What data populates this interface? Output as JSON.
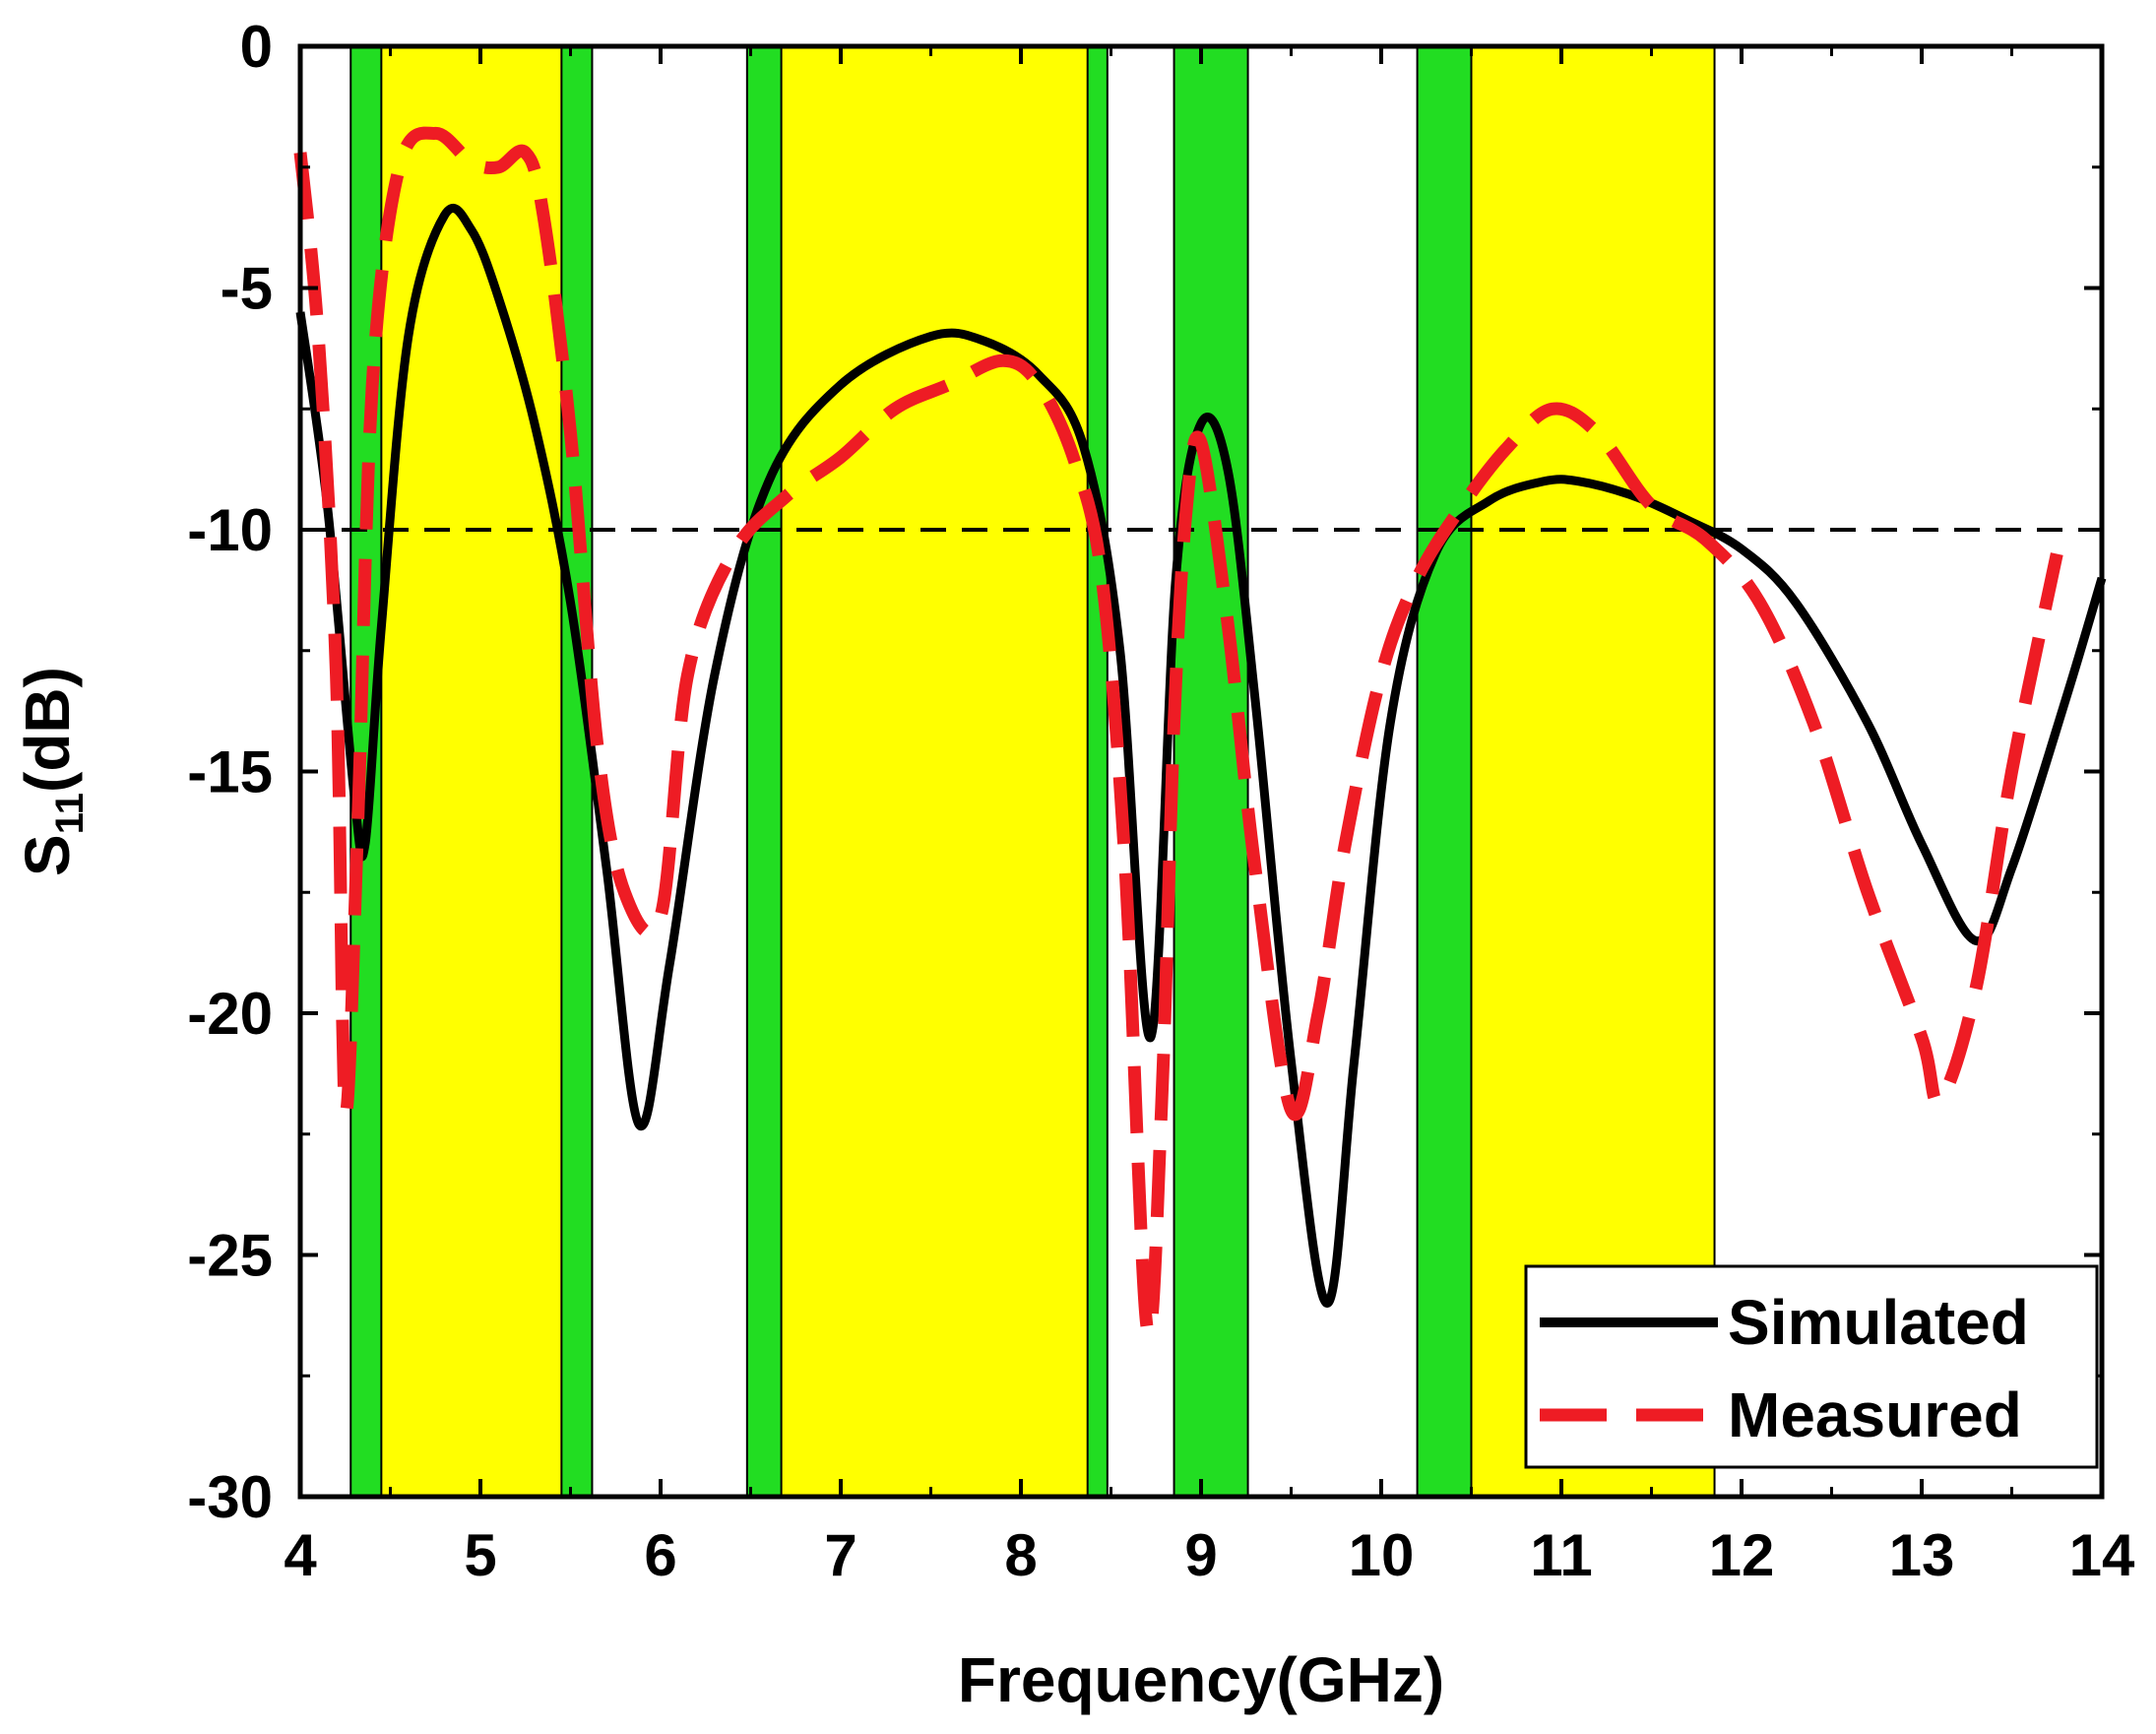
{
  "chart_data": {
    "type": "line",
    "title": "",
    "xlabel": "Frequency(GHz)",
    "ylabel": {
      "main": "S",
      "sub": "11",
      "unit": "(dB)"
    },
    "xlim": [
      4,
      14
    ],
    "ylim": [
      -30,
      0
    ],
    "xticks": [
      4,
      5,
      6,
      7,
      8,
      9,
      10,
      11,
      12,
      13,
      14
    ],
    "yticks": [
      0,
      -5,
      -10,
      -15,
      -20,
      -25,
      -30
    ],
    "grid": false,
    "threshold_line": {
      "y": -10,
      "style": "dashed",
      "color": "#000000"
    },
    "bands": [
      {
        "x0": 4.28,
        "x1": 5.62,
        "color": "#22dd22"
      },
      {
        "x0": 4.45,
        "x1": 5.45,
        "color": "#ffff00"
      },
      {
        "x0": 6.48,
        "x1": 8.48,
        "color": "#22dd22"
      },
      {
        "x0": 6.67,
        "x1": 8.37,
        "color": "#ffff00"
      },
      {
        "x0": 8.85,
        "x1": 9.26,
        "color": "#22dd22"
      },
      {
        "x0": 10.2,
        "x1": 10.5,
        "color": "#22dd22"
      },
      {
        "x0": 10.5,
        "x1": 11.85,
        "color": "#ffff00"
      }
    ],
    "series": [
      {
        "name": "Simulated",
        "color": "#000000",
        "style": "solid",
        "x": [
          4.0,
          4.15,
          4.3,
          4.36,
          4.45,
          4.6,
          4.8,
          4.95,
          5.1,
          5.3,
          5.5,
          5.7,
          5.88,
          6.05,
          6.3,
          6.6,
          7.0,
          7.5,
          7.8,
          8.1,
          8.35,
          8.55,
          8.72,
          8.86,
          9.0,
          9.15,
          9.3,
          9.5,
          9.7,
          9.85,
          10.05,
          10.3,
          10.6,
          10.9,
          11.1,
          11.4,
          11.7,
          12.0,
          12.3,
          12.7,
          13.0,
          13.3,
          13.5,
          13.8,
          14.0
        ],
        "y": [
          -5.5,
          -9.5,
          -15.5,
          -16.5,
          -12.0,
          -6.0,
          -3.5,
          -3.8,
          -5.2,
          -7.8,
          -11.5,
          -17.0,
          -22.3,
          -19.0,
          -13.0,
          -9.0,
          -7.0,
          -6.0,
          -6.1,
          -6.8,
          -8.3,
          -12.5,
          -20.5,
          -11.0,
          -7.8,
          -8.8,
          -13.5,
          -21.0,
          -26.0,
          -21.0,
          -14.0,
          -10.5,
          -9.4,
          -9.0,
          -9.0,
          -9.3,
          -9.8,
          -10.4,
          -11.5,
          -14.0,
          -16.5,
          -18.5,
          -17.0,
          -13.5,
          -11.0
        ]
      },
      {
        "name": "Measured",
        "color": "#ee1c24",
        "style": "dashed",
        "x": [
          4.0,
          4.1,
          4.2,
          4.25,
          4.32,
          4.4,
          4.55,
          4.75,
          4.95,
          5.1,
          5.25,
          5.35,
          5.5,
          5.65,
          5.8,
          6.0,
          6.15,
          6.4,
          6.7,
          7.0,
          7.3,
          7.6,
          7.9,
          8.1,
          8.3,
          8.45,
          8.58,
          8.7,
          8.78,
          8.85,
          8.92,
          9.0,
          9.15,
          9.3,
          9.5,
          9.65,
          9.8,
          10.0,
          10.2,
          10.45,
          10.7,
          10.95,
          11.2,
          11.5,
          11.8,
          12.1,
          12.4,
          12.7,
          13.0,
          13.1,
          13.3,
          13.5,
          13.75
        ],
        "y": [
          -2.2,
          -6.0,
          -13.0,
          -22.0,
          -16.0,
          -7.0,
          -2.5,
          -1.8,
          -2.4,
          -2.5,
          -2.2,
          -3.5,
          -8.0,
          -14.5,
          -17.5,
          -18.0,
          -13.0,
          -10.5,
          -9.3,
          -8.5,
          -7.5,
          -7.0,
          -6.5,
          -7.0,
          -8.6,
          -11.0,
          -17.0,
          -26.5,
          -22.0,
          -14.0,
          -9.5,
          -8.2,
          -12.0,
          -17.0,
          -22.0,
          -20.0,
          -16.5,
          -13.0,
          -11.0,
          -9.5,
          -8.3,
          -7.5,
          -8.0,
          -9.5,
          -10.2,
          -11.5,
          -14.0,
          -17.5,
          -20.5,
          -21.8,
          -19.5,
          -15.0,
          -10.5
        ]
      }
    ],
    "legend": {
      "location": "bottom-right",
      "entries": [
        "Simulated",
        "Measured"
      ]
    }
  }
}
